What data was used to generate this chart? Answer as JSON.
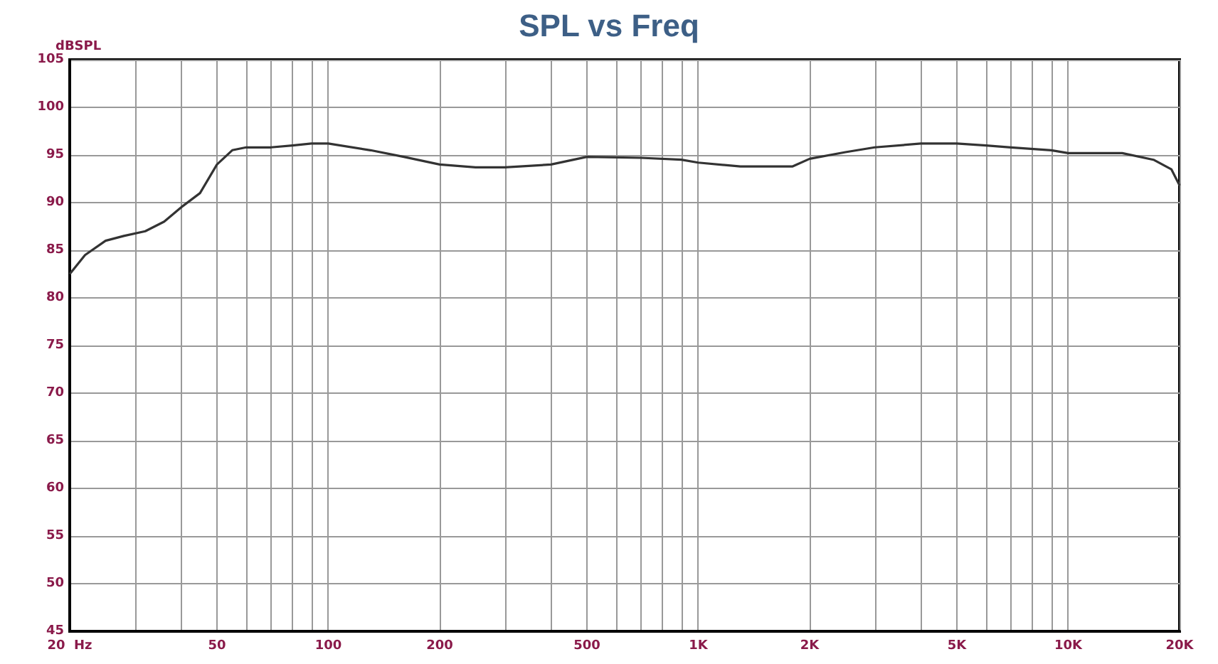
{
  "chart_data": {
    "type": "line",
    "title": "SPL vs Freq",
    "ylabel": "dBSPL",
    "x": [
      20,
      22,
      25,
      28,
      32,
      36,
      40,
      45,
      50,
      55,
      60,
      70,
      80,
      90,
      100,
      130,
      160,
      200,
      250,
      300,
      400,
      500,
      700,
      900,
      1000,
      1300,
      1800,
      2000,
      2500,
      3000,
      4000,
      5000,
      6000,
      7000,
      9000,
      10000,
      14000,
      17000,
      19000,
      20000
    ],
    "series": [
      {
        "color": "#333333",
        "values": [
          82.5,
          84.5,
          86,
          86.5,
          87,
          88,
          89.5,
          91,
          94,
          95.5,
          95.8,
          95.8,
          96,
          96.2,
          96.2,
          95.5,
          94.8,
          94,
          93.7,
          93.7,
          94,
          94.8,
          94.7,
          94.5,
          94.2,
          93.8,
          93.8,
          94.6,
          95.3,
          95.8,
          96.2,
          96.2,
          96,
          95.8,
          95.5,
          95.2,
          95.2,
          94.5,
          93.5,
          91.8
        ]
      }
    ],
    "log": "x",
    "xlim": [
      20,
      20000
    ],
    "ylim": [
      45,
      105
    ],
    "xticks": [
      {
        "value": 20,
        "label": "20  Hz"
      },
      {
        "value": 30,
        "label": null
      },
      {
        "value": 40,
        "label": null
      },
      50,
      {
        "value": 60,
        "label": null
      },
      {
        "value": 70,
        "label": null
      },
      {
        "value": 80,
        "label": null
      },
      {
        "value": 90,
        "label": null
      },
      100,
      200,
      {
        "value": 300,
        "label": null
      },
      {
        "value": 400,
        "label": null
      },
      500,
      {
        "value": 600,
        "label": null
      },
      {
        "value": 700,
        "label": null
      },
      {
        "value": 800,
        "label": null
      },
      {
        "value": 900,
        "label": null
      },
      {
        "value": 1000,
        "label": "1K"
      },
      {
        "value": 2000,
        "label": "2K"
      },
      {
        "value": 3000,
        "label": null
      },
      {
        "value": 4000,
        "label": null
      },
      {
        "value": 5000,
        "label": "5K"
      },
      {
        "value": 6000,
        "label": null
      },
      {
        "value": 7000,
        "label": null
      },
      {
        "value": 8000,
        "label": null
      },
      {
        "value": 9000,
        "label": null
      },
      {
        "value": 10000,
        "label": "10K"
      },
      {
        "value": 20000,
        "label": "20K"
      }
    ],
    "yticks": [
      45,
      50,
      55,
      60,
      65,
      70,
      75,
      80,
      85,
      90,
      95,
      100,
      105
    ],
    "grid": true,
    "marker": "none",
    "line_style": "solid"
  }
}
